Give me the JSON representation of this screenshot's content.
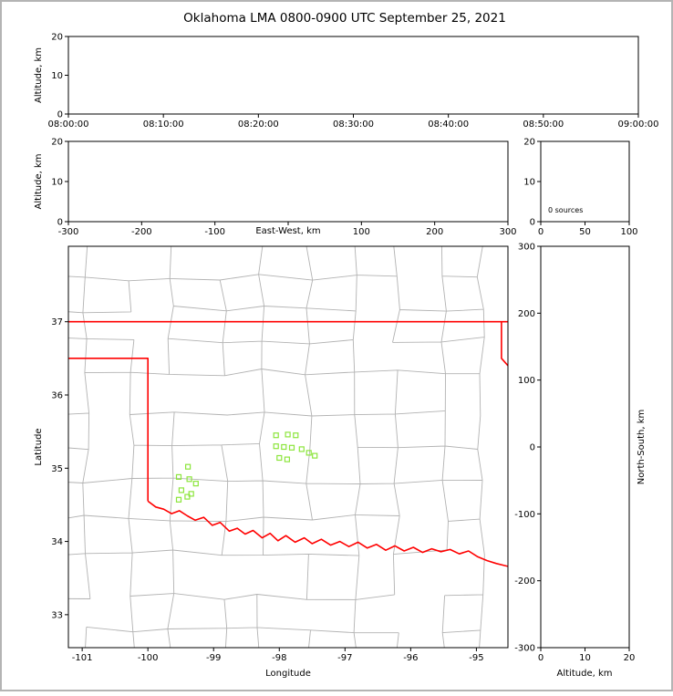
{
  "title": "Oklahoma LMA 0800-0900 UTC September 25, 2021",
  "colors": {
    "axis": "#000000",
    "county_lines": "#b2b2b2",
    "state_border": "#ff0000",
    "station_marker": "#8ce53c",
    "background": "#ffffff",
    "frame_border": "#b4b4b4"
  },
  "panels": {
    "time_height": {
      "ylabel": "Altitude, km",
      "xtick_labels": [
        "08:00:00",
        "08:10:00",
        "08:20:00",
        "08:30:00",
        "08:40:00",
        "08:50:00",
        "09:00:00"
      ],
      "ytick_vals": [
        0,
        10,
        20
      ],
      "ylim": [
        0,
        20
      ]
    },
    "ew_height": {
      "ylabel": "Altitude, km",
      "xlabel": "East-West, km",
      "xtick_vals": [
        -300,
        -200,
        -100,
        0,
        100,
        200,
        300
      ],
      "xtick_labels": [
        "-300",
        "-200",
        "-100",
        "",
        "100",
        "200",
        "300"
      ],
      "xlim": [
        -300,
        300
      ],
      "ytick_vals": [
        0,
        10,
        20
      ],
      "ylim": [
        0,
        20
      ]
    },
    "histogram": {
      "annotation": "0 sources",
      "xtick_vals": [
        0,
        50,
        100
      ],
      "xlim": [
        0,
        100
      ],
      "ytick_vals": [
        0,
        10,
        20
      ],
      "ylim": [
        0,
        20
      ]
    },
    "map": {
      "xlabel": "Longitude",
      "ylabel": "Latitude",
      "xtick_vals": [
        -101,
        -100,
        -99,
        -98,
        -97,
        -96,
        -95
      ],
      "xlim": [
        -101.21,
        -94.52
      ],
      "ytick_vals": [
        33,
        34,
        35,
        36,
        37
      ],
      "ylim": [
        32.55,
        38.03
      ]
    },
    "ns_height": {
      "xlabel": "Altitude, km",
      "ylabel": "North-South, km",
      "xtick_vals": [
        0,
        10,
        20
      ],
      "xlim": [
        0,
        20
      ],
      "ytick_vals": [
        300,
        200,
        100,
        0,
        -100,
        -200,
        -300
      ],
      "ylim": [
        -300,
        300
      ]
    }
  },
  "chart_data": {
    "type": "scatter",
    "title": "Oklahoma LMA 0800-0900 UTC September 25, 2021",
    "description": "XLMA-style lightning display for 0800-0900 UTC; zero VHF sources detected this hour. Green open squares on the map are LMA station locations; red outline is the Oklahoma state border; gray lines are county boundaries.",
    "source_count": 0,
    "time_axis": {
      "start": "08:00:00",
      "end": "09:00:00",
      "ticks": [
        "08:00:00",
        "08:10:00",
        "08:20:00",
        "08:30:00",
        "08:40:00",
        "08:50:00",
        "09:00:00"
      ]
    },
    "altitude_range_km": [
      0,
      20
    ],
    "stations": {
      "marker": "open-square",
      "color": "#8ce53c",
      "points": [
        {
          "lon": -99.39,
          "lat": 35.02
        },
        {
          "lon": -99.53,
          "lat": 34.88
        },
        {
          "lon": -99.37,
          "lat": 34.85
        },
        {
          "lon": -99.27,
          "lat": 34.79
        },
        {
          "lon": -99.49,
          "lat": 34.7
        },
        {
          "lon": -99.34,
          "lat": 34.65
        },
        {
          "lon": -99.53,
          "lat": 34.57
        },
        {
          "lon": -99.4,
          "lat": 34.61
        },
        {
          "lon": -98.05,
          "lat": 35.45
        },
        {
          "lon": -97.87,
          "lat": 35.46
        },
        {
          "lon": -97.75,
          "lat": 35.45
        },
        {
          "lon": -98.05,
          "lat": 35.3
        },
        {
          "lon": -97.93,
          "lat": 35.29
        },
        {
          "lon": -97.81,
          "lat": 35.28
        },
        {
          "lon": -97.66,
          "lat": 35.26
        },
        {
          "lon": -98.0,
          "lat": 35.14
        },
        {
          "lon": -97.88,
          "lat": 35.12
        },
        {
          "lon": -97.55,
          "lat": 35.21
        },
        {
          "lon": -97.46,
          "lat": 35.17
        }
      ]
    },
    "state_border": {
      "color": "#ff0000",
      "segments": [
        [
          [
            -101.21,
            37.0
          ],
          [
            -94.52,
            37.0
          ]
        ],
        [
          [
            -101.21,
            36.5
          ],
          [
            -100.0,
            36.5
          ],
          [
            -100.0,
            34.55
          ]
        ],
        [
          [
            -94.618,
            37.0
          ],
          [
            -94.618,
            36.5
          ],
          [
            -94.52,
            36.4
          ]
        ],
        [
          [
            -100.0,
            34.55
          ],
          [
            -99.88,
            34.47
          ],
          [
            -99.76,
            34.44
          ],
          [
            -99.64,
            34.38
          ],
          [
            -99.52,
            34.42
          ],
          [
            -99.4,
            34.35
          ],
          [
            -99.28,
            34.29
          ],
          [
            -99.15,
            34.33
          ],
          [
            -99.02,
            34.22
          ],
          [
            -98.9,
            34.26
          ],
          [
            -98.76,
            34.14
          ],
          [
            -98.64,
            34.18
          ],
          [
            -98.52,
            34.1
          ],
          [
            -98.4,
            34.15
          ],
          [
            -98.26,
            34.05
          ],
          [
            -98.14,
            34.11
          ],
          [
            -98.02,
            34.01
          ],
          [
            -97.9,
            34.08
          ],
          [
            -97.76,
            33.99
          ],
          [
            -97.62,
            34.05
          ],
          [
            -97.5,
            33.97
          ],
          [
            -97.36,
            34.03
          ],
          [
            -97.22,
            33.95
          ],
          [
            -97.08,
            34.0
          ],
          [
            -96.94,
            33.93
          ],
          [
            -96.8,
            33.99
          ],
          [
            -96.66,
            33.91
          ],
          [
            -96.52,
            33.96
          ],
          [
            -96.38,
            33.88
          ],
          [
            -96.24,
            33.94
          ],
          [
            -96.1,
            33.87
          ],
          [
            -95.96,
            33.92
          ],
          [
            -95.82,
            33.85
          ],
          [
            -95.68,
            33.9
          ],
          [
            -95.54,
            33.86
          ],
          [
            -95.4,
            33.89
          ],
          [
            -95.26,
            33.83
          ],
          [
            -95.12,
            33.87
          ],
          [
            -94.98,
            33.79
          ],
          [
            -94.84,
            33.74
          ],
          [
            -94.7,
            33.7
          ],
          [
            -94.52,
            33.66
          ]
        ]
      ]
    }
  }
}
